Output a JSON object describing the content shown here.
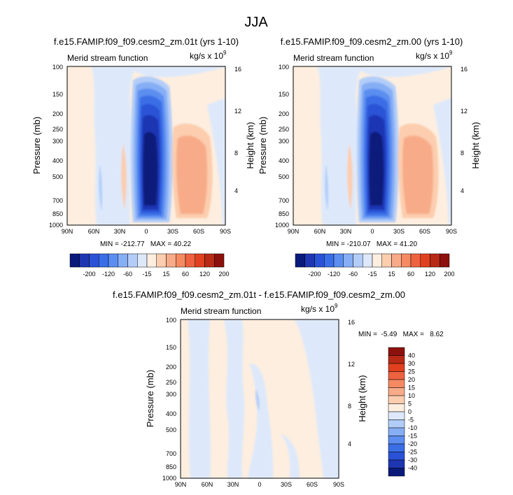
{
  "figure_title": "JJA",
  "chart_data": [
    {
      "type": "heatmap",
      "title": "f.e15.FAMIP.f09_f09.cesm2_zm.01t (yrs 1-10)",
      "subtitle_left": "Merid stream function",
      "units_text": "kg/s x 10",
      "units_exp": "9",
      "xlabel": "",
      "ylabel": "Pressure (mb)",
      "ylabel_right": "Height (km)",
      "xticks": [
        "90N",
        "60N",
        "30N",
        "0",
        "30S",
        "60S",
        "90S"
      ],
      "yticks": [
        "100",
        "150",
        "200",
        "250",
        "300",
        "400",
        "500",
        "700",
        "850",
        "1000"
      ],
      "yticks_right": [
        "16",
        "12",
        "8",
        "4"
      ],
      "stats": "MIN = -212.77   MAX = 40.22",
      "min": -212.77,
      "max": 40.22
    },
    {
      "type": "heatmap",
      "title": "f.e15.FAMIP.f09_f09.cesm2_zm.00 (yrs 1-10)",
      "subtitle_left": "Merid stream function",
      "units_text": "kg/s x 10",
      "units_exp": "9",
      "xlabel": "",
      "ylabel": "Pressure (mb)",
      "ylabel_right": "Height (km)",
      "xticks": [
        "90N",
        "60N",
        "30N",
        "0",
        "30S",
        "60S",
        "90S"
      ],
      "yticks": [
        "100",
        "150",
        "200",
        "250",
        "300",
        "400",
        "500",
        "700",
        "850",
        "1000"
      ],
      "yticks_right": [
        "16",
        "12",
        "8",
        "4"
      ],
      "stats": "MIN = -210.07   MAX = 41.20",
      "min": -210.07,
      "max": 41.2
    },
    {
      "type": "heatmap",
      "title": "f.e15.FAMIP.f09_f09.cesm2_zm.01t - f.e15.FAMIP.f09_f09.cesm2_zm.00",
      "subtitle_left": "Merid stream function",
      "units_text": "kg/s x 10",
      "units_exp": "9",
      "xlabel": "",
      "ylabel": "Pressure (mb)",
      "ylabel_right": "Height (km)",
      "xticks": [
        "90N",
        "60N",
        "30N",
        "0",
        "30S",
        "60S",
        "90S"
      ],
      "yticks": [
        "100",
        "150",
        "200",
        "250",
        "300",
        "400",
        "500",
        "700",
        "850",
        "1000"
      ],
      "yticks_right": [
        "16",
        "12",
        "8",
        "4"
      ],
      "stats": "MIN =  -5.49   MAX =   8.62",
      "min": -5.49,
      "max": 8.62
    }
  ],
  "colorbar_main": {
    "labels": [
      "-200",
      "-120",
      "-60",
      "-15",
      "15",
      "60",
      "120",
      "200"
    ],
    "colors": [
      "#0a1a7a",
      "#1f36b3",
      "#2a52d6",
      "#3a6ee6",
      "#5c8ef0",
      "#86aef5",
      "#b2cdf8",
      "#dde9fb",
      "#fdeedf",
      "#fccdae",
      "#f8ab88",
      "#f58a62",
      "#ee6240",
      "#e0401f",
      "#b82a16",
      "#8c110c"
    ]
  },
  "colorbar_diff": {
    "labels": [
      "40",
      "30",
      "25",
      "20",
      "15",
      "10",
      "5",
      "0",
      "-5",
      "-10",
      "-15",
      "-20",
      "-25",
      "-30",
      "-40"
    ],
    "colors": [
      "#8c110c",
      "#b82a16",
      "#e0401f",
      "#ee6240",
      "#f58a62",
      "#f8ab88",
      "#fccdae",
      "#fdeedf",
      "#dde9fb",
      "#b2cdf8",
      "#86aef5",
      "#5c8ef0",
      "#3a6ee6",
      "#2a52d6",
      "#1f36b3",
      "#0a1a7a"
    ]
  }
}
